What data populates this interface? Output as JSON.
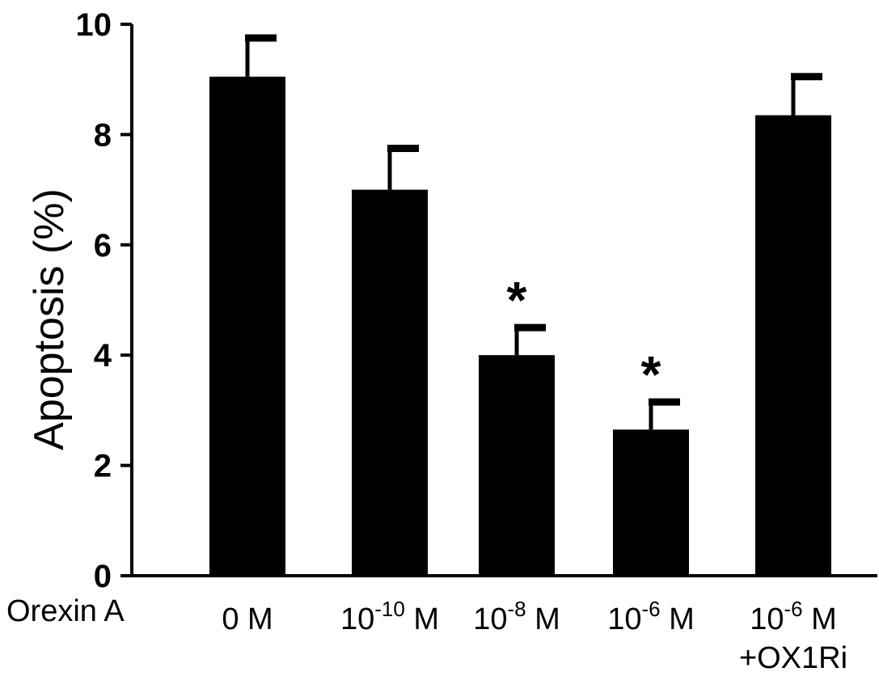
{
  "chart_data": {
    "type": "bar",
    "title": "",
    "xlabel": "Orexin A",
    "ylabel": "Apoptosis (%)",
    "ylim": [
      0,
      10
    ],
    "yticks": [
      "0",
      "2",
      "4",
      "6",
      "8",
      "10"
    ],
    "categories": [
      {
        "base": "0 M",
        "sup": "",
        "suffix": "",
        "line2": ""
      },
      {
        "base": "10",
        "sup": "-10",
        "suffix": " M",
        "line2": ""
      },
      {
        "base": "10",
        "sup": "-8",
        "suffix": " M",
        "line2": ""
      },
      {
        "base": "10",
        "sup": "-6",
        "suffix": " M",
        "line2": ""
      },
      {
        "base": "10",
        "sup": "-6",
        "suffix": " M",
        "line2": "+OX1Ri"
      }
    ],
    "values": [
      9.05,
      7.0,
      4.0,
      2.65,
      8.35
    ],
    "errors": [
      0.7,
      0.75,
      0.5,
      0.5,
      0.7
    ],
    "significance": [
      "",
      "",
      "*",
      "*",
      ""
    ],
    "bar_color": "#000000",
    "grid": false
  }
}
